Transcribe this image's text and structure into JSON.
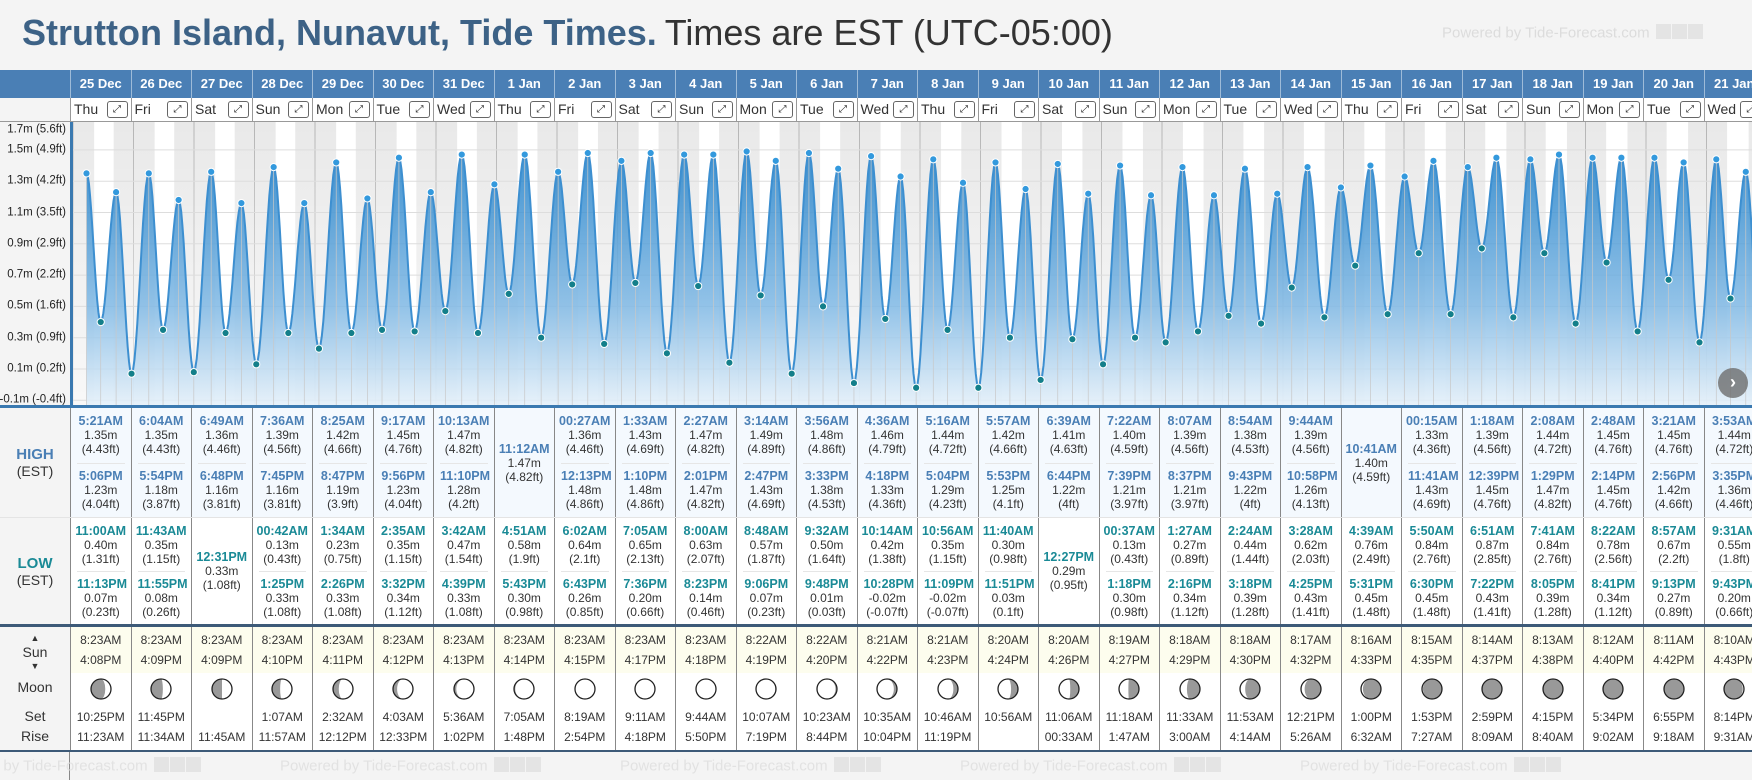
{
  "header": {
    "location": "Strutton Island, Nunavut, Tide Times.",
    "timezone": "Times are EST (UTC-05:00)",
    "powered_by": "Powered by Tide-Forecast.com"
  },
  "labels": {
    "high": "HIGH",
    "low": "LOW",
    "est": "(EST)",
    "sun": "Sun",
    "moon": "Moon",
    "set": "Set",
    "rise": "Rise",
    "expand": "⤢",
    "up_arrow": "▲",
    "down_arrow": "▼",
    "next": "›"
  },
  "colors": {
    "header_blue": "#4a7fb5",
    "high_text": "#4a7fb5",
    "low_text": "#1a8a96",
    "tide_line": "#3d8fd0",
    "high_dot": "#3399dd",
    "low_dot": "#137f8a"
  },
  "chart": {
    "y_ticks": [
      {
        "m": 1.7,
        "label": "1.7m (5.6ft)"
      },
      {
        "m": 1.5,
        "label": "1.5m (4.9ft)"
      },
      {
        "m": 1.3,
        "label": "1.3m (4.2ft)"
      },
      {
        "m": 1.1,
        "label": "1.1m (3.5ft)"
      },
      {
        "m": 0.9,
        "label": "0.9m (2.9ft)"
      },
      {
        "m": 0.7,
        "label": "0.7m (2.2ft)"
      },
      {
        "m": 0.5,
        "label": "0.5m (1.6ft)"
      },
      {
        "m": 0.3,
        "label": "0.3m (0.9ft)"
      },
      {
        "m": 0.1,
        "label": "0.1m (0.2ft)"
      },
      {
        "m": -0.1,
        "label": "-0.1m (-0.4ft)"
      }
    ]
  },
  "days": [
    {
      "date": "25 Dec",
      "dow": "Thu",
      "highs": [
        {
          "t": "5:21AM",
          "m": "1.35m",
          "ft": "(4.43ft)"
        },
        {
          "t": "5:06PM",
          "m": "1.23m",
          "ft": "(4.04ft)"
        }
      ],
      "lows": [
        {
          "t": "11:00AM",
          "m": "0.40m",
          "ft": "(1.31ft)"
        },
        {
          "t": "11:13PM",
          "m": "0.07m",
          "ft": "(0.23ft)"
        }
      ],
      "sunrise": "8:23AM",
      "sunset": "4:08PM",
      "moon_phase": 0.18,
      "moonset": "10:25PM",
      "moonrise": "11:23AM"
    },
    {
      "date": "26 Dec",
      "dow": "Fri",
      "highs": [
        {
          "t": "6:04AM",
          "m": "1.35m",
          "ft": "(4.43ft)"
        },
        {
          "t": "5:54PM",
          "m": "1.18m",
          "ft": "(3.87ft)"
        }
      ],
      "lows": [
        {
          "t": "11:43AM",
          "m": "0.35m",
          "ft": "(1.15ft)"
        },
        {
          "t": "11:55PM",
          "m": "0.08m",
          "ft": "(0.26ft)"
        }
      ],
      "sunrise": "8:23AM",
      "sunset": "4:09PM",
      "moon_phase": 0.22,
      "moonset": "11:45PM",
      "moonrise": "11:34AM"
    },
    {
      "date": "27 Dec",
      "dow": "Sat",
      "highs": [
        {
          "t": "6:49AM",
          "m": "1.36m",
          "ft": "(4.46ft)"
        },
        {
          "t": "6:48PM",
          "m": "1.16m",
          "ft": "(3.81ft)"
        }
      ],
      "lows": [
        {
          "t": "12:31PM",
          "m": "0.33m",
          "ft": "(1.08ft)"
        }
      ],
      "sunrise": "8:23AM",
      "sunset": "4:09PM",
      "moon_phase": 0.25,
      "moonset": "",
      "moonrise": "11:45AM"
    },
    {
      "date": "28 Dec",
      "dow": "Sun",
      "highs": [
        {
          "t": "7:36AM",
          "m": "1.39m",
          "ft": "(4.56ft)"
        },
        {
          "t": "7:45PM",
          "m": "1.16m",
          "ft": "(3.81ft)"
        }
      ],
      "lows": [
        {
          "t": "00:42AM",
          "m": "0.13m",
          "ft": "(0.43ft)"
        },
        {
          "t": "1:25PM",
          "m": "0.33m",
          "ft": "(1.08ft)"
        }
      ],
      "sunrise": "8:23AM",
      "sunset": "4:10PM",
      "moon_phase": 0.28,
      "moonset": "1:07AM",
      "moonrise": "11:57AM"
    },
    {
      "date": "29 Dec",
      "dow": "Mon",
      "highs": [
        {
          "t": "8:25AM",
          "m": "1.42m",
          "ft": "(4.66ft)"
        },
        {
          "t": "8:47PM",
          "m": "1.19m",
          "ft": "(3.9ft)"
        }
      ],
      "lows": [
        {
          "t": "1:34AM",
          "m": "0.23m",
          "ft": "(0.75ft)"
        },
        {
          "t": "2:26PM",
          "m": "0.33m",
          "ft": "(1.08ft)"
        }
      ],
      "sunrise": "8:23AM",
      "sunset": "4:11PM",
      "moon_phase": 0.32,
      "moonset": "2:32AM",
      "moonrise": "12:12PM"
    },
    {
      "date": "30 Dec",
      "dow": "Tue",
      "highs": [
        {
          "t": "9:17AM",
          "m": "1.45m",
          "ft": "(4.76ft)"
        },
        {
          "t": "9:56PM",
          "m": "1.23m",
          "ft": "(4.04ft)"
        }
      ],
      "lows": [
        {
          "t": "2:35AM",
          "m": "0.35m",
          "ft": "(1.15ft)"
        },
        {
          "t": "3:32PM",
          "m": "0.34m",
          "ft": "(1.12ft)"
        }
      ],
      "sunrise": "8:23AM",
      "sunset": "4:12PM",
      "moon_phase": 0.35,
      "moonset": "4:03AM",
      "moonrise": "12:33PM"
    },
    {
      "date": "31 Dec",
      "dow": "Wed",
      "highs": [
        {
          "t": "10:13AM",
          "m": "1.47m",
          "ft": "(4.82ft)"
        },
        {
          "t": "11:10PM",
          "m": "1.28m",
          "ft": "(4.2ft)"
        }
      ],
      "lows": [
        {
          "t": "3:42AM",
          "m": "0.47m",
          "ft": "(1.54ft)"
        },
        {
          "t": "4:39PM",
          "m": "0.33m",
          "ft": "(1.08ft)"
        }
      ],
      "sunrise": "8:23AM",
      "sunset": "4:13PM",
      "moon_phase": 0.39,
      "moonset": "5:36AM",
      "moonrise": "1:02PM"
    },
    {
      "date": "1 Jan",
      "dow": "Thu",
      "highs": [
        {
          "t": "11:12AM",
          "m": "1.47m",
          "ft": "(4.82ft)"
        }
      ],
      "lows": [
        {
          "t": "4:51AM",
          "m": "0.58m",
          "ft": "(1.9ft)"
        },
        {
          "t": "5:43PM",
          "m": "0.30m",
          "ft": "(0.98ft)"
        }
      ],
      "sunrise": "8:23AM",
      "sunset": "4:14PM",
      "moon_phase": 0.42,
      "moonset": "7:05AM",
      "moonrise": "1:48PM"
    },
    {
      "date": "2 Jan",
      "dow": "Fri",
      "highs": [
        {
          "t": "00:27AM",
          "m": "1.36m",
          "ft": "(4.46ft)"
        },
        {
          "t": "12:13PM",
          "m": "1.48m",
          "ft": "(4.86ft)"
        }
      ],
      "lows": [
        {
          "t": "6:02AM",
          "m": "0.64m",
          "ft": "(2.1ft)"
        },
        {
          "t": "6:43PM",
          "m": "0.26m",
          "ft": "(0.85ft)"
        }
      ],
      "sunrise": "8:23AM",
      "sunset": "4:15PM",
      "moon_phase": 0.46,
      "moonset": "8:19AM",
      "moonrise": "2:54PM"
    },
    {
      "date": "3 Jan",
      "dow": "Sat",
      "highs": [
        {
          "t": "1:33AM",
          "m": "1.43m",
          "ft": "(4.69ft)"
        },
        {
          "t": "1:10PM",
          "m": "1.48m",
          "ft": "(4.86ft)"
        }
      ],
      "lows": [
        {
          "t": "7:05AM",
          "m": "0.65m",
          "ft": "(2.13ft)"
        },
        {
          "t": "7:36PM",
          "m": "0.20m",
          "ft": "(0.66ft)"
        }
      ],
      "sunrise": "8:23AM",
      "sunset": "4:17PM",
      "moon_phase": 0.49,
      "moonset": "9:11AM",
      "moonrise": "4:18PM"
    },
    {
      "date": "4 Jan",
      "dow": "Sun",
      "highs": [
        {
          "t": "2:27AM",
          "m": "1.47m",
          "ft": "(4.82ft)"
        },
        {
          "t": "2:01PM",
          "m": "1.47m",
          "ft": "(4.82ft)"
        }
      ],
      "lows": [
        {
          "t": "8:00AM",
          "m": "0.63m",
          "ft": "(2.07ft)"
        },
        {
          "t": "8:23PM",
          "m": "0.14m",
          "ft": "(0.46ft)"
        }
      ],
      "sunrise": "8:23AM",
      "sunset": "4:18PM",
      "moon_phase": 0.52,
      "moonset": "9:44AM",
      "moonrise": "5:50PM"
    },
    {
      "date": "5 Jan",
      "dow": "Mon",
      "highs": [
        {
          "t": "3:14AM",
          "m": "1.49m",
          "ft": "(4.89ft)"
        },
        {
          "t": "2:47PM",
          "m": "1.43m",
          "ft": "(4.69ft)"
        }
      ],
      "lows": [
        {
          "t": "8:48AM",
          "m": "0.57m",
          "ft": "(1.87ft)"
        },
        {
          "t": "9:06PM",
          "m": "0.07m",
          "ft": "(0.23ft)"
        }
      ],
      "sunrise": "8:22AM",
      "sunset": "4:19PM",
      "moon_phase": 0.56,
      "moonset": "10:07AM",
      "moonrise": "7:19PM"
    },
    {
      "date": "6 Jan",
      "dow": "Tue",
      "highs": [
        {
          "t": "3:56AM",
          "m": "1.48m",
          "ft": "(4.86ft)"
        },
        {
          "t": "3:33PM",
          "m": "1.38m",
          "ft": "(4.53ft)"
        }
      ],
      "lows": [
        {
          "t": "9:32AM",
          "m": "0.50m",
          "ft": "(1.64ft)"
        },
        {
          "t": "9:48PM",
          "m": "0.01m",
          "ft": "(0.03ft)"
        }
      ],
      "sunrise": "8:22AM",
      "sunset": "4:20PM",
      "moon_phase": 0.59,
      "moonset": "10:23AM",
      "moonrise": "8:44PM"
    },
    {
      "date": "7 Jan",
      "dow": "Wed",
      "highs": [
        {
          "t": "4:36AM",
          "m": "1.46m",
          "ft": "(4.79ft)"
        },
        {
          "t": "4:18PM",
          "m": "1.33m",
          "ft": "(4.36ft)"
        }
      ],
      "lows": [
        {
          "t": "10:14AM",
          "m": "0.42m",
          "ft": "(1.38ft)"
        },
        {
          "t": "10:28PM",
          "m": "-0.02m",
          "ft": "(-0.07ft)"
        }
      ],
      "sunrise": "8:21AM",
      "sunset": "4:22PM",
      "moon_phase": 0.63,
      "moonset": "10:35AM",
      "moonrise": "10:04PM"
    },
    {
      "date": "8 Jan",
      "dow": "Thu",
      "highs": [
        {
          "t": "5:16AM",
          "m": "1.44m",
          "ft": "(4.72ft)"
        },
        {
          "t": "5:04PM",
          "m": "1.29m",
          "ft": "(4.23ft)"
        }
      ],
      "lows": [
        {
          "t": "10:56AM",
          "m": "0.35m",
          "ft": "(1.15ft)"
        },
        {
          "t": "11:09PM",
          "m": "-0.02m",
          "ft": "(-0.07ft)"
        }
      ],
      "sunrise": "8:21AM",
      "sunset": "4:23PM",
      "moon_phase": 0.66,
      "moonset": "10:46AM",
      "moonrise": "11:19PM"
    },
    {
      "date": "9 Jan",
      "dow": "Fri",
      "highs": [
        {
          "t": "5:57AM",
          "m": "1.42m",
          "ft": "(4.66ft)"
        },
        {
          "t": "5:53PM",
          "m": "1.25m",
          "ft": "(4.1ft)"
        }
      ],
      "lows": [
        {
          "t": "11:40AM",
          "m": "0.30m",
          "ft": "(0.98ft)"
        },
        {
          "t": "11:51PM",
          "m": "0.03m",
          "ft": "(0.1ft)"
        }
      ],
      "sunrise": "8:20AM",
      "sunset": "4:24PM",
      "moon_phase": 0.7,
      "moonset": "10:56AM",
      "moonrise": ""
    },
    {
      "date": "10 Jan",
      "dow": "Sat",
      "highs": [
        {
          "t": "6:39AM",
          "m": "1.41m",
          "ft": "(4.63ft)"
        },
        {
          "t": "6:44PM",
          "m": "1.22m",
          "ft": "(4ft)"
        }
      ],
      "lows": [
        {
          "t": "12:27PM",
          "m": "0.29m",
          "ft": "(0.95ft)"
        }
      ],
      "sunrise": "8:20AM",
      "sunset": "4:26PM",
      "moon_phase": 0.73,
      "moonset": "11:06AM",
      "moonrise": "00:33AM"
    },
    {
      "date": "11 Jan",
      "dow": "Sun",
      "highs": [
        {
          "t": "7:22AM",
          "m": "1.40m",
          "ft": "(4.59ft)"
        },
        {
          "t": "7:39PM",
          "m": "1.21m",
          "ft": "(3.97ft)"
        }
      ],
      "lows": [
        {
          "t": "00:37AM",
          "m": "0.13m",
          "ft": "(0.43ft)"
        },
        {
          "t": "1:18PM",
          "m": "0.30m",
          "ft": "(0.98ft)"
        }
      ],
      "sunrise": "8:19AM",
      "sunset": "4:27PM",
      "moon_phase": 0.76,
      "moonset": "11:18AM",
      "moonrise": "1:47AM"
    },
    {
      "date": "12 Jan",
      "dow": "Mon",
      "highs": [
        {
          "t": "8:07AM",
          "m": "1.39m",
          "ft": "(4.56ft)"
        },
        {
          "t": "8:37PM",
          "m": "1.21m",
          "ft": "(3.97ft)"
        }
      ],
      "lows": [
        {
          "t": "1:27AM",
          "m": "0.27m",
          "ft": "(0.89ft)"
        },
        {
          "t": "2:16PM",
          "m": "0.34m",
          "ft": "(1.12ft)"
        }
      ],
      "sunrise": "8:18AM",
      "sunset": "4:29PM",
      "moon_phase": 0.8,
      "moonset": "11:33AM",
      "moonrise": "3:00AM"
    },
    {
      "date": "13 Jan",
      "dow": "Tue",
      "highs": [
        {
          "t": "8:54AM",
          "m": "1.38m",
          "ft": "(4.53ft)"
        },
        {
          "t": "9:43PM",
          "m": "1.22m",
          "ft": "(4ft)"
        }
      ],
      "lows": [
        {
          "t": "2:24AM",
          "m": "0.44m",
          "ft": "(1.44ft)"
        },
        {
          "t": "3:18PM",
          "m": "0.39m",
          "ft": "(1.28ft)"
        }
      ],
      "sunrise": "8:18AM",
      "sunset": "4:30PM",
      "moon_phase": 0.83,
      "moonset": "11:53AM",
      "moonrise": "4:14AM"
    },
    {
      "date": "14 Jan",
      "dow": "Wed",
      "highs": [
        {
          "t": "9:44AM",
          "m": "1.39m",
          "ft": "(4.56ft)"
        },
        {
          "t": "10:58PM",
          "m": "1.26m",
          "ft": "(4.13ft)"
        }
      ],
      "lows": [
        {
          "t": "3:28AM",
          "m": "0.62m",
          "ft": "(2.03ft)"
        },
        {
          "t": "4:25PM",
          "m": "0.43m",
          "ft": "(1.41ft)"
        }
      ],
      "sunrise": "8:17AM",
      "sunset": "4:32PM",
      "moon_phase": 0.86,
      "moonset": "12:21PM",
      "moonrise": "5:26AM"
    },
    {
      "date": "15 Jan",
      "dow": "Thu",
      "highs": [
        {
          "t": "10:41AM",
          "m": "1.40m",
          "ft": "(4.59ft)"
        }
      ],
      "lows": [
        {
          "t": "4:39AM",
          "m": "0.76m",
          "ft": "(2.49ft)"
        },
        {
          "t": "5:31PM",
          "m": "0.45m",
          "ft": "(1.48ft)"
        }
      ],
      "sunrise": "8:16AM",
      "sunset": "4:33PM",
      "moon_phase": 0.9,
      "moonset": "1:00PM",
      "moonrise": "6:32AM"
    },
    {
      "date": "16 Jan",
      "dow": "Fri",
      "highs": [
        {
          "t": "00:15AM",
          "m": "1.33m",
          "ft": "(4.36ft)"
        },
        {
          "t": "11:41AM",
          "m": "1.43m",
          "ft": "(4.69ft)"
        }
      ],
      "lows": [
        {
          "t": "5:50AM",
          "m": "0.84m",
          "ft": "(2.76ft)"
        },
        {
          "t": "6:30PM",
          "m": "0.45m",
          "ft": "(1.48ft)"
        }
      ],
      "sunrise": "8:15AM",
      "sunset": "4:35PM",
      "moon_phase": 0.93,
      "moonset": "1:53PM",
      "moonrise": "7:27AM"
    },
    {
      "date": "17 Jan",
      "dow": "Sat",
      "highs": [
        {
          "t": "1:18AM",
          "m": "1.39m",
          "ft": "(4.56ft)"
        },
        {
          "t": "12:39PM",
          "m": "1.45m",
          "ft": "(4.76ft)"
        }
      ],
      "lows": [
        {
          "t": "6:51AM",
          "m": "0.87m",
          "ft": "(2.85ft)"
        },
        {
          "t": "7:22PM",
          "m": "0.43m",
          "ft": "(1.41ft)"
        }
      ],
      "sunrise": "8:14AM",
      "sunset": "4:37PM",
      "moon_phase": 0.96,
      "moonset": "2:59PM",
      "moonrise": "8:09AM"
    },
    {
      "date": "18 Jan",
      "dow": "Sun",
      "highs": [
        {
          "t": "2:08AM",
          "m": "1.44m",
          "ft": "(4.72ft)"
        },
        {
          "t": "1:29PM",
          "m": "1.47m",
          "ft": "(4.82ft)"
        }
      ],
      "lows": [
        {
          "t": "7:41AM",
          "m": "0.84m",
          "ft": "(2.76ft)"
        },
        {
          "t": "8:05PM",
          "m": "0.39m",
          "ft": "(1.28ft)"
        }
      ],
      "sunrise": "8:13AM",
      "sunset": "4:38PM",
      "moon_phase": 0.995,
      "moonset": "4:15PM",
      "moonrise": "8:40AM"
    },
    {
      "date": "19 Jan",
      "dow": "Mon",
      "highs": [
        {
          "t": "2:48AM",
          "m": "1.45m",
          "ft": "(4.76ft)"
        },
        {
          "t": "2:14PM",
          "m": "1.45m",
          "ft": "(4.76ft)"
        }
      ],
      "lows": [
        {
          "t": "8:22AM",
          "m": "0.78m",
          "ft": "(2.56ft)"
        },
        {
          "t": "8:41PM",
          "m": "0.34m",
          "ft": "(1.12ft)"
        }
      ],
      "sunrise": "8:12AM",
      "sunset": "4:40PM",
      "moon_phase": 0.02,
      "moonset": "5:34PM",
      "moonrise": "9:02AM"
    },
    {
      "date": "20 Jan",
      "dow": "Tue",
      "highs": [
        {
          "t": "3:21AM",
          "m": "1.45m",
          "ft": "(4.76ft)"
        },
        {
          "t": "2:56PM",
          "m": "1.42m",
          "ft": "(4.66ft)"
        }
      ],
      "lows": [
        {
          "t": "8:57AM",
          "m": "0.67m",
          "ft": "(2.2ft)"
        },
        {
          "t": "9:13PM",
          "m": "0.27m",
          "ft": "(0.89ft)"
        }
      ],
      "sunrise": "8:11AM",
      "sunset": "4:42PM",
      "moon_phase": 0.05,
      "moonset": "6:55PM",
      "moonrise": "9:18AM"
    },
    {
      "date": "21 Jan",
      "dow": "Wed",
      "highs": [
        {
          "t": "3:53AM",
          "m": "1.44m",
          "ft": "(4.72ft)"
        },
        {
          "t": "3:35PM",
          "m": "1.36m",
          "ft": "(4.46ft)"
        }
      ],
      "lows": [
        {
          "t": "9:31AM",
          "m": "0.55m",
          "ft": "(1.8ft)"
        },
        {
          "t": "9:43PM",
          "m": "0.20m",
          "ft": "(0.66ft)"
        }
      ],
      "sunrise": "8:10AM",
      "sunset": "4:43PM",
      "moon_phase": 0.08,
      "moonset": "8:14PM",
      "moonrise": "9:31AM"
    }
  ]
}
